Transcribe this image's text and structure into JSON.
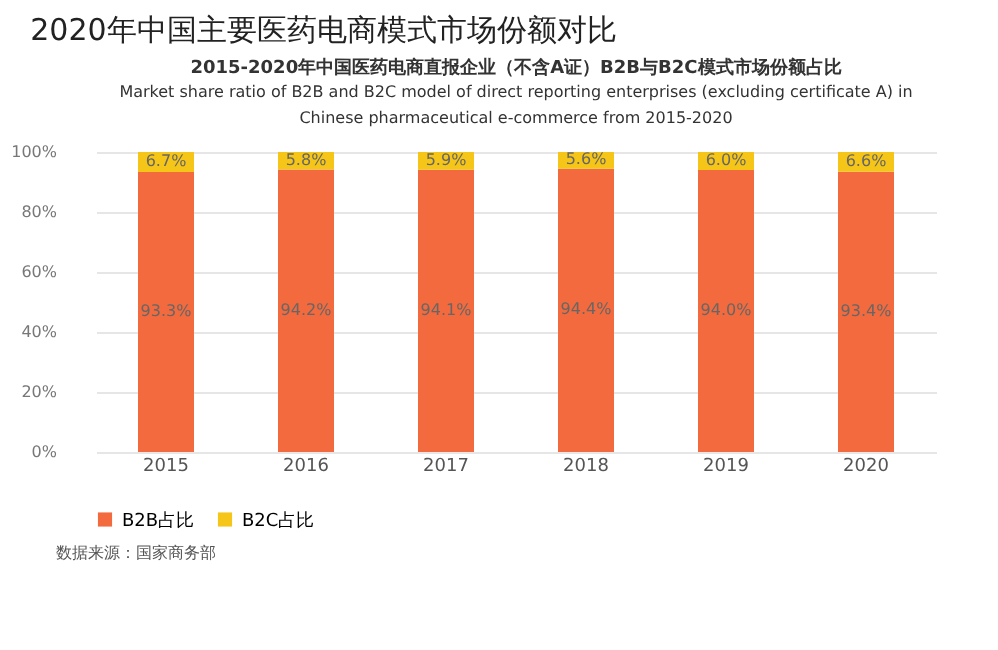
{
  "chart_data": {
    "type": "bar",
    "title": "2020年中国主要医药电商模式市场份额对比",
    "subtitle": "2015-2020年中国医药电商直报企业（不含A证）B2B与B2C模式市场份额占比",
    "annotations": [
      "Market share ratio of B2B and B2C model of direct reporting enterprises (excluding certificate A) in Chinese pharmaceutical e-commerce from 2015-2020",
      "数据来源：国家商务部"
    ],
    "categories": [
      "2015",
      "2016",
      "2017",
      "2018",
      "2019",
      "2020"
    ],
    "stacked": true,
    "series": [
      {
        "name": "B2B占比",
        "color": "#f26a3d",
        "values": [
          93.3,
          94.2,
          94.1,
          94.4,
          94.0,
          93.4
        ],
        "value_labels": [
          "93.3%",
          "94.2%",
          "94.1%",
          "94.4%",
          "94.0%",
          "93.4%"
        ]
      },
      {
        "name": "B2C占比",
        "color": "#f5c518",
        "values": [
          6.7,
          5.8,
          5.9,
          5.6,
          6.0,
          6.6
        ],
        "value_labels": [
          "6.7%",
          "5.8%",
          "5.9%",
          "5.6%",
          "6.0%",
          "6.6%"
        ]
      }
    ],
    "ylim": [
      0,
      100
    ],
    "yticks": [
      {
        "value": 0,
        "label": "0%"
      },
      {
        "value": 20,
        "label": "20%"
      },
      {
        "value": 40,
        "label": "40%"
      },
      {
        "value": 60,
        "label": "60%"
      },
      {
        "value": 80,
        "label": "80%"
      },
      {
        "value": 100,
        "label": "100%"
      }
    ],
    "grid": "y",
    "legend": "bottom"
  }
}
